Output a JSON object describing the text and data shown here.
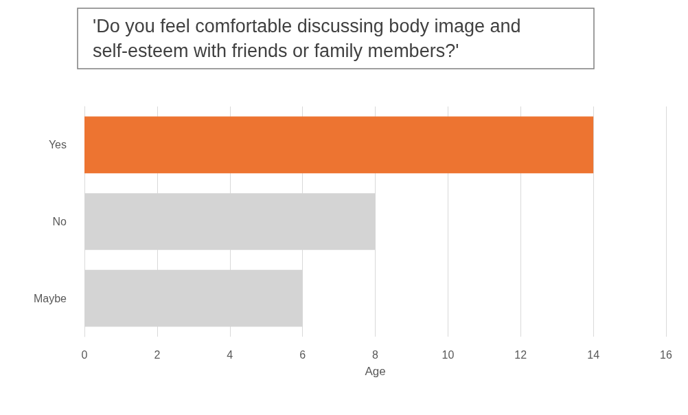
{
  "chart_data": {
    "type": "bar",
    "orientation": "horizontal",
    "title": "'Do you feel comfortable discussing body image and self-esteem with friends or family members?'",
    "xlabel": "Age",
    "categories": [
      "Yes",
      "No",
      "Maybe"
    ],
    "values": [
      14,
      8,
      6
    ],
    "colors": [
      "#ed7431",
      "#d4d4d4",
      "#d4d4d4"
    ],
    "xlim": [
      0,
      16
    ],
    "xticks": [
      0,
      2,
      4,
      6,
      8,
      10,
      12,
      14,
      16
    ],
    "grid": "x"
  }
}
